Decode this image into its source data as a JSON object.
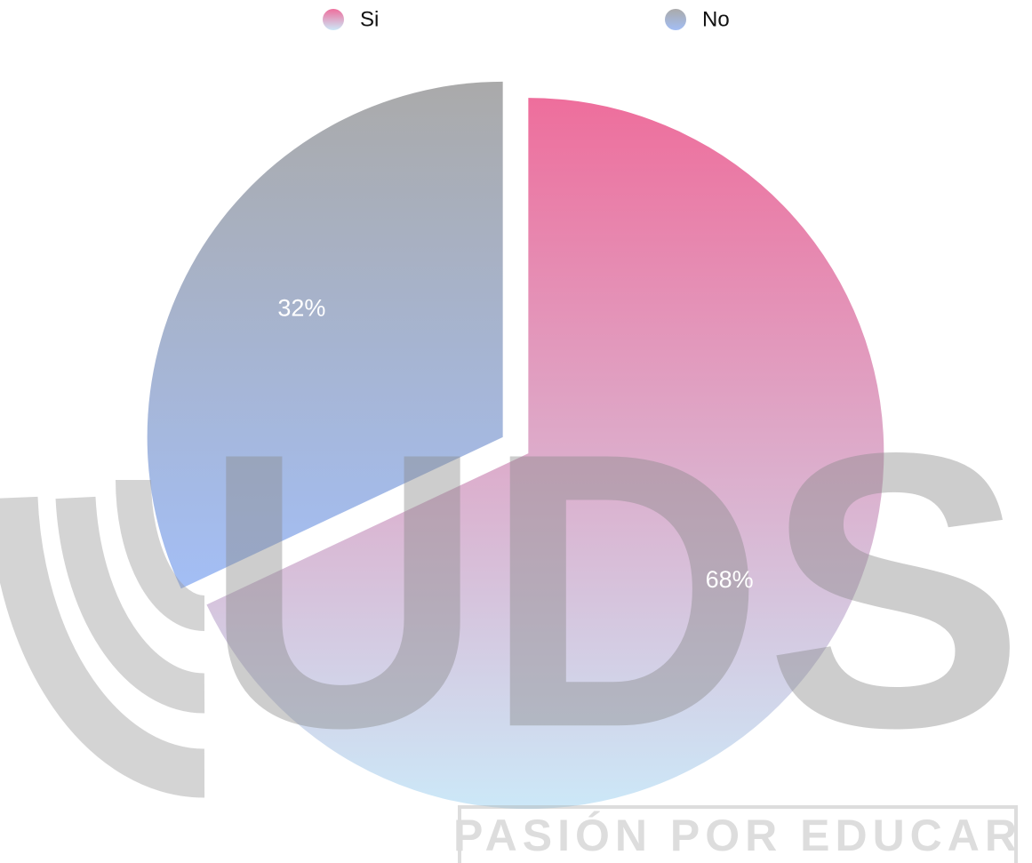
{
  "chart_data": {
    "type": "pie",
    "categories": [
      "Si",
      "No"
    ],
    "values": [
      68,
      32
    ],
    "value_labels": [
      "68%",
      "32%"
    ],
    "gradients": [
      [
        "#ee6e9c",
        "#cce8f8"
      ],
      [
        "#aaaaaa",
        "#a3bef5"
      ]
    ],
    "explode": true
  },
  "watermark": {
    "logo": "UDS",
    "tagline": "PASIÓN POR EDUCAR"
  }
}
